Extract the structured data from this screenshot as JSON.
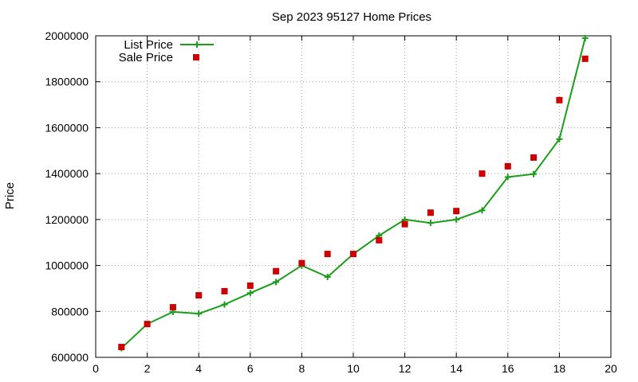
{
  "chart_data": {
    "type": "line",
    "title": "Sep 2023 95127 Home Prices",
    "xlabel": "",
    "ylabel": "Price",
    "xlim": [
      0,
      20
    ],
    "ylim": [
      600000,
      2000000
    ],
    "x_ticks": [
      0,
      2,
      4,
      6,
      8,
      10,
      12,
      14,
      16,
      18,
      20
    ],
    "y_ticks": [
      600000,
      800000,
      1000000,
      1200000,
      1400000,
      1600000,
      1800000,
      2000000
    ],
    "grid": true,
    "legend_position": "top-left",
    "series": [
      {
        "name": "List Price",
        "style": "line-with-plus-markers",
        "color": "#1a9e1a",
        "x": [
          1,
          2,
          3,
          4,
          5,
          6,
          7,
          8,
          9,
          10,
          11,
          12,
          13,
          14,
          15,
          16,
          17,
          18,
          19
        ],
        "values": [
          640000,
          745000,
          798000,
          790000,
          830000,
          880000,
          928000,
          1000000,
          950000,
          1050000,
          1130000,
          1200000,
          1185000,
          1200000,
          1240000,
          1385000,
          1398000,
          1550000,
          1990000
        ]
      },
      {
        "name": "Sale Price",
        "style": "square-markers",
        "color": "#cc0000",
        "x": [
          1,
          2,
          3,
          4,
          5,
          6,
          7,
          8,
          9,
          10,
          11,
          12,
          13,
          14,
          15,
          16,
          17,
          18,
          19
        ],
        "values": [
          645000,
          745000,
          818000,
          870000,
          888000,
          912000,
          975000,
          1010000,
          1050000,
          1050000,
          1110000,
          1180000,
          1230000,
          1237000,
          1400000,
          1432000,
          1470000,
          1720000,
          1900000
        ]
      }
    ]
  }
}
